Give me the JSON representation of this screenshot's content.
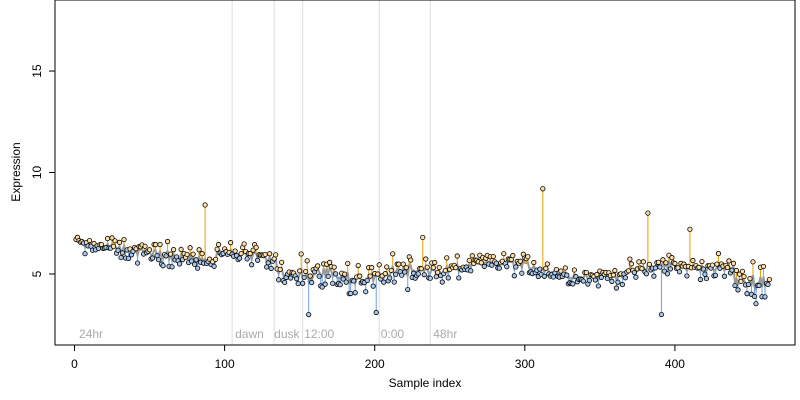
{
  "chart_data": {
    "type": "scatter",
    "title": "",
    "xlabel": "Sample index",
    "ylabel": "Expression",
    "xlim": [
      -13,
      480
    ],
    "ylim": [
      1.5,
      18.5
    ],
    "x_ticks": [
      0,
      100,
      200,
      300,
      400
    ],
    "y_ticks": [
      5,
      10,
      15
    ],
    "grid": false,
    "legend": "none",
    "phase_boundaries": [
      105,
      133,
      152,
      203,
      237
    ],
    "phase_labels": [
      {
        "text": "24hr",
        "x": 3
      },
      {
        "text": "dawn",
        "x": 107
      },
      {
        "text": "dusk",
        "x": 133
      },
      {
        "text": "12:00",
        "x": 153
      },
      {
        "text": "0:00",
        "x": 204
      },
      {
        "text": "48hr",
        "x": 239
      }
    ],
    "colors": {
      "above": "#e69f00",
      "below": "#6f9fd8",
      "smooth": "#999999",
      "point_fill": "#ffdfa5",
      "point_fill_low": "#a9c8ee",
      "boundary": "#dddddd"
    },
    "notable_points": [
      {
        "x": 87,
        "y": 8.4
      },
      {
        "x": 232,
        "y": 6.8
      },
      {
        "x": 312,
        "y": 9.2
      },
      {
        "x": 382,
        "y": 8.0
      },
      {
        "x": 410,
        "y": 7.2
      },
      {
        "x": 156,
        "y": 3.0
      },
      {
        "x": 201,
        "y": 3.1
      },
      {
        "x": 391,
        "y": 3.0
      }
    ]
  }
}
